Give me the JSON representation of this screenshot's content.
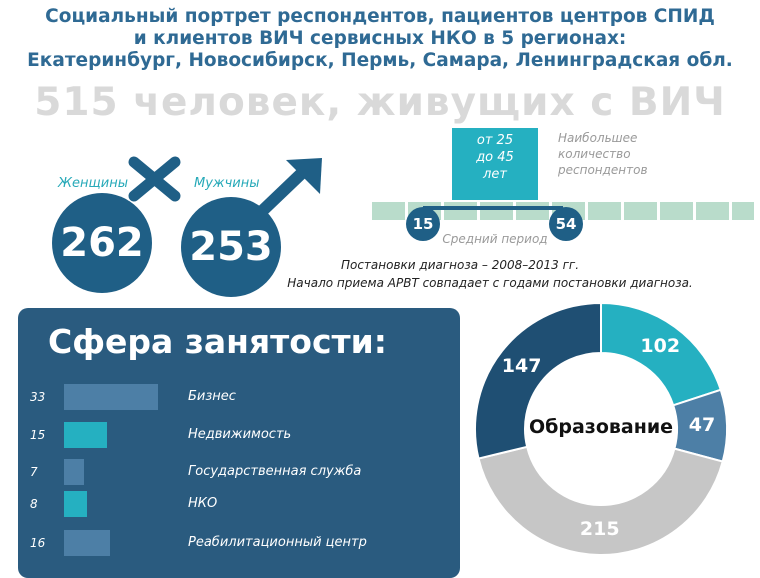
{
  "header": {
    "line1": "Социальный портрет респондентов, пациентов центров СПИД",
    "line2": "и клиентов ВИЧ сервисных НКО в 5 регионах:",
    "line3": "Екатеринбург, Новосибирск, Пермь, Самара, Ленинградская обл.",
    "big_title": "515 человек, живущих с ВИЧ"
  },
  "gender": {
    "female_label": "Женщины",
    "female_value": "262",
    "male_label": "Мужчины",
    "male_value": "253"
  },
  "timeline": {
    "box_line1": "от 25",
    "box_line2": "до 45",
    "box_line3": "лет",
    "note_line1": "Наибольшее",
    "note_line2": "количество",
    "note_line3": "респондентов",
    "start": "15",
    "end": "54",
    "period_label": "Средний период",
    "caption1": "Постановки диагноза – 2008–2013 гг.",
    "caption2": "Начало приема АРВТ совпадает с годами постановки диагноза."
  },
  "chart_data": [
    {
      "type": "bar",
      "title": "Сфера занятости:",
      "categories": [
        "Бизнес",
        "Недвижимость",
        "Государственная служба",
        "НКО",
        "Реабилитационный центр"
      ],
      "values": [
        33,
        15,
        7,
        8,
        16
      ],
      "value_labels": [
        "33",
        "15",
        "7",
        "8",
        "16"
      ],
      "colors": [
        "#4d7fa6",
        "#25b0c1",
        "#4d7fa6",
        "#25b0c1",
        "#4d7fa6"
      ],
      "xmax": 35
    },
    {
      "type": "pie",
      "title": "Образование",
      "values": [
        102,
        47,
        215,
        147
      ],
      "value_labels": [
        "102",
        "47",
        "215",
        "147"
      ],
      "colors": [
        "#25b0c1",
        "#4d7fa6",
        "#c6c6c6",
        "#1f4f73"
      ]
    }
  ]
}
